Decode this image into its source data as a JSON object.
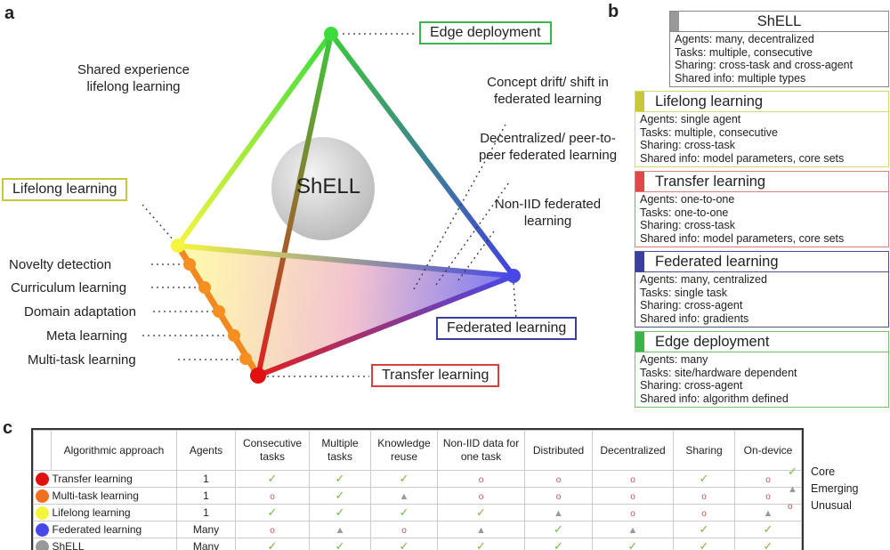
{
  "panels": {
    "a": "a",
    "b": "b",
    "c": "c"
  },
  "diagram": {
    "center": "ShELL",
    "vertices": {
      "edge": "Edge deployment",
      "lifelong": "Lifelong learning",
      "federated": "Federated learning",
      "transfer": "Transfer learning"
    },
    "shared_experience": "Shared experience lifelong learning",
    "federated_labels": [
      "Concept drift/ shift in federated learning",
      "Decentralized/ peer-to-peer federated learning",
      "Non-IID federated learning"
    ],
    "edge_points": [
      "Novelty detection",
      "Curriculum learning",
      "Domain adaptation",
      "Meta learning",
      "Multi-task learning"
    ],
    "colors": {
      "edge": "#3cb44b",
      "lifelong": "#f2f24a",
      "federated": "#4040e0",
      "transfer": "#e01010",
      "orange": "#f08020"
    }
  },
  "cards": [
    {
      "title": "ShELL",
      "color": "#999999",
      "border": "#888888",
      "lines": [
        "Agents: many, decentralized",
        "Tasks: multiple, consecutive",
        "Sharing: cross-task and cross-agent",
        "Shared info: multiple types"
      ]
    },
    {
      "title": "Lifelong learning",
      "color": "#c8c83a",
      "border": "#d8d870",
      "lines": [
        "Agents: single agent",
        "Tasks: multiple, consecutive",
        "Sharing: cross-task",
        "Shared info: model parameters, core sets"
      ]
    },
    {
      "title": "Transfer learning",
      "color": "#e04848",
      "border": "#d88080",
      "lines": [
        "Agents: one-to-one",
        "Tasks: one-to-one",
        "Sharing: cross-task",
        "Shared info: model  parameters, core sets"
      ]
    },
    {
      "title": "Federated learning",
      "color": "#3a40a0",
      "border": "#50508a",
      "lines": [
        "Agents: many, centralized",
        "Tasks: single task",
        "Sharing: cross-agent",
        "Shared info: gradients"
      ]
    },
    {
      "title": "Edge deployment",
      "color": "#3cb44b",
      "border": "#70c070",
      "lines": [
        "Agents: many",
        "Tasks: site/hardware dependent",
        "Sharing: cross-agent",
        "Shared info: algorithm defined"
      ]
    }
  ],
  "table": {
    "headers": [
      "Algorithmic approach",
      "Agents",
      "Consecutive tasks",
      "Multiple tasks",
      "Knowledge reuse",
      "Non-IID data for one task",
      "Distributed",
      "Decentralized",
      "Sharing",
      "On-device"
    ],
    "rows": [
      {
        "name": "Transfer learning",
        "color": "#e01010",
        "agents": "1",
        "cells": [
          "core",
          "core",
          "core",
          "unusual",
          "unusual",
          "unusual",
          "core",
          "unusual"
        ]
      },
      {
        "name": "Multi-task learning",
        "color": "#f07020",
        "agents": "1",
        "cells": [
          "unusual",
          "core",
          "emerging",
          "unusual",
          "unusual",
          "unusual",
          "unusual",
          "unusual"
        ]
      },
      {
        "name": "Lifelong learning",
        "color": "#f5f540",
        "agents": "1",
        "cells": [
          "core",
          "core",
          "core",
          "core",
          "emerging",
          "unusual",
          "unusual",
          "emerging"
        ]
      },
      {
        "name": "Federated learning",
        "color": "#4848e8",
        "agents": "Many",
        "cells": [
          "unusual",
          "emerging",
          "unusual",
          "emerging",
          "core",
          "emerging",
          "core",
          "core"
        ]
      },
      {
        "name": "ShELL",
        "color": "#999999",
        "agents": "Many",
        "cells": [
          "core",
          "core",
          "core",
          "core",
          "core",
          "core",
          "core",
          "core"
        ]
      }
    ],
    "legend": [
      {
        "key": "core",
        "label": "Core"
      },
      {
        "key": "emerging",
        "label": "Emerging"
      },
      {
        "key": "unusual",
        "label": "Unusual"
      }
    ]
  }
}
